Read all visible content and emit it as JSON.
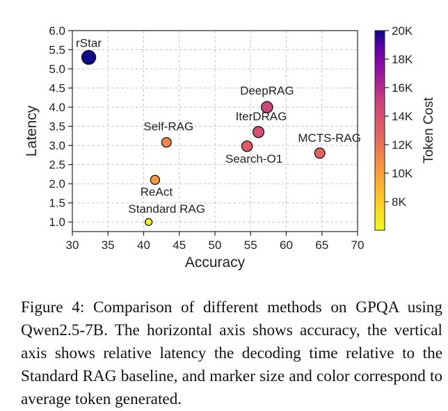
{
  "chart_data": {
    "type": "scatter",
    "xlabel": "Accuracy",
    "ylabel": "Latency",
    "xlim": [
      30,
      70
    ],
    "ylim": [
      0.75,
      6.0
    ],
    "xticks": [
      30,
      35,
      40,
      45,
      50,
      55,
      60,
      65,
      70
    ],
    "yticks": [
      1.0,
      1.5,
      2.0,
      2.5,
      3.0,
      3.5,
      4.0,
      4.5,
      5.0,
      5.5,
      6.0
    ],
    "grid": true,
    "colorbar": {
      "label": "Token Cost",
      "range": [
        6000,
        20000
      ],
      "ticks": [
        8000,
        10000,
        12000,
        14000,
        16000,
        18000,
        20000
      ],
      "tick_labels": [
        "8K",
        "10K",
        "12K",
        "14K",
        "16K",
        "18K",
        "20K"
      ],
      "colormap": "plasma"
    },
    "points": [
      {
        "label": "rStar",
        "x": 32.3,
        "y": 5.3,
        "tokens": 20000
      },
      {
        "label": "DeepRAG",
        "x": 57.3,
        "y": 4.0,
        "tokens": 14800
      },
      {
        "label": "IterDRAG",
        "x": 56.1,
        "y": 3.35,
        "tokens": 14200
      },
      {
        "label": "Search-O1",
        "x": 54.5,
        "y": 2.98,
        "tokens": 13300
      },
      {
        "label": "MCTS-RAG",
        "x": 64.7,
        "y": 2.8,
        "tokens": 12800
      },
      {
        "label": "Self-RAG",
        "x": 43.2,
        "y": 3.08,
        "tokens": 11200
      },
      {
        "label": "ReAct",
        "x": 41.6,
        "y": 2.1,
        "tokens": 10300
      },
      {
        "label": "Standard RAG",
        "x": 40.7,
        "y": 1.0,
        "tokens": 6000
      }
    ],
    "highlight": {
      "label": "MCTS-RAG",
      "color": "#ee1111"
    }
  },
  "caption": "Figure 4: Comparison of different methods on GPQA using Qwen2.5-7B. The horizontal axis shows accuracy, the vertical axis shows relative latency the decoding time relative to the Standard RAG baseline, and marker size and color correspond to average token generated."
}
